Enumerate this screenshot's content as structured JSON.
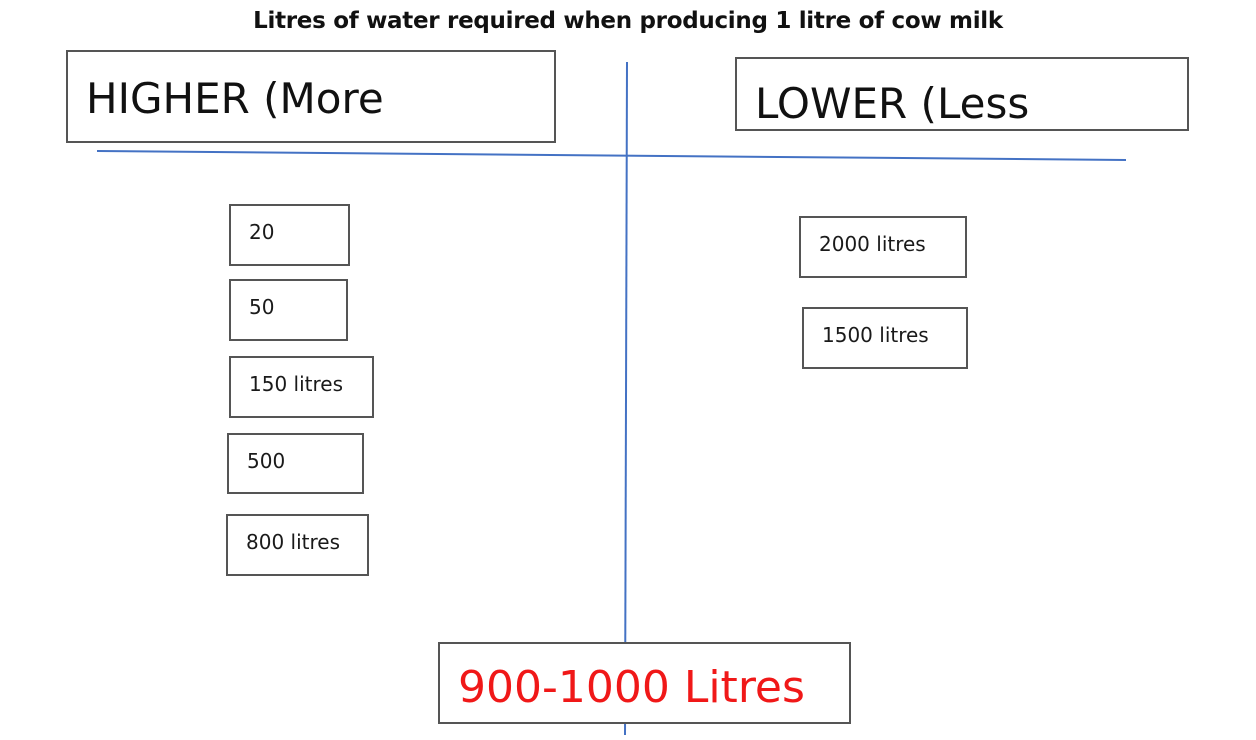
{
  "title": "Litres of water required when producing 1 litre of cow milk",
  "headers": {
    "higher": "HIGHER (More",
    "lower": "LOWER (Less"
  },
  "higher_values": [
    "20",
    "50",
    "150 litres",
    "500",
    "800 litres"
  ],
  "lower_values": [
    "2000 litres",
    "1500 litres"
  ],
  "answer": {
    "label": "900-1000 Litres",
    "color": "#f01818"
  },
  "line_color": "#4472c4"
}
